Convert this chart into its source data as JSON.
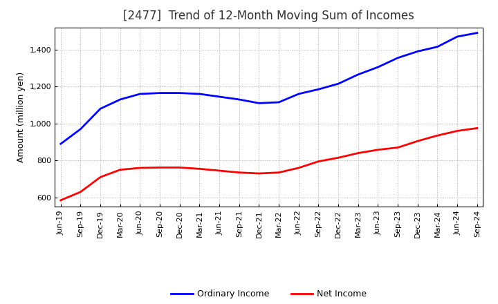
{
  "title": "[2477]  Trend of 12-Month Moving Sum of Incomes",
  "ylabel": "Amount (million yen)",
  "background_color": "#ffffff",
  "plot_bg_color": "#ffffff",
  "grid_color": "#aaaaaa",
  "ylim": [
    550,
    1520
  ],
  "yticks": [
    600,
    800,
    1000,
    1200,
    1400
  ],
  "ytick_labels": [
    "600",
    "800",
    "1,000",
    "1,200",
    "1,400"
  ],
  "labels": [
    "Jun-19",
    "Sep-19",
    "Dec-19",
    "Mar-20",
    "Jun-20",
    "Sep-20",
    "Dec-20",
    "Mar-21",
    "Jun-21",
    "Sep-21",
    "Dec-21",
    "Mar-22",
    "Jun-22",
    "Sep-22",
    "Dec-22",
    "Mar-23",
    "Jun-23",
    "Sep-23",
    "Dec-23",
    "Mar-24",
    "Jun-24",
    "Sep-24"
  ],
  "ordinary_income": [
    890,
    970,
    1080,
    1130,
    1160,
    1165,
    1165,
    1160,
    1145,
    1130,
    1110,
    1115,
    1160,
    1185,
    1215,
    1265,
    1305,
    1355,
    1390,
    1415,
    1470,
    1490
  ],
  "net_income": [
    585,
    630,
    710,
    750,
    760,
    762,
    762,
    755,
    745,
    735,
    730,
    735,
    760,
    795,
    815,
    840,
    858,
    870,
    905,
    935,
    960,
    975
  ],
  "ordinary_color": "#0000ff",
  "net_color": "#ff0000",
  "line_width": 2.0,
  "legend_ordinary": "Ordinary Income",
  "legend_net": "Net Income",
  "title_fontsize": 12,
  "title_color": "#333333",
  "axis_label_fontsize": 9,
  "tick_fontsize": 8,
  "legend_fontsize": 9
}
